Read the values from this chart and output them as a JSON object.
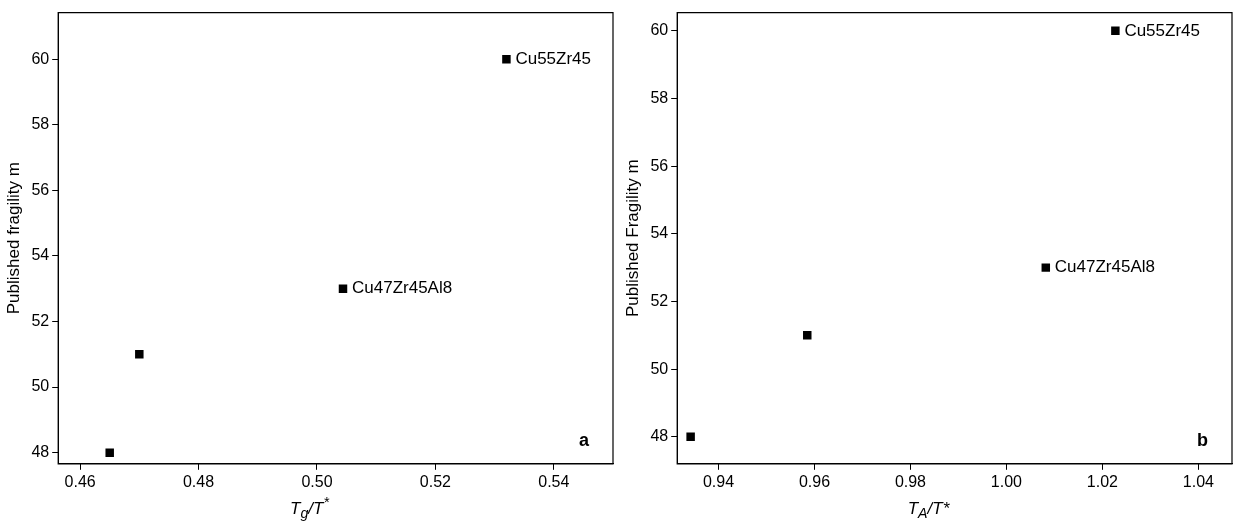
{
  "chart_data": [
    {
      "type": "scatter",
      "xlabel": "T$_{g}$/T$^{*}$",
      "ylabel": "Published fragility m",
      "marker": "square",
      "grid": false,
      "legend": false,
      "series": [
        {
          "color": "#000000",
          "x": [
            0.465,
            0.47,
            0.5044,
            0.532
          ],
          "values": [
            48,
            51,
            53,
            60
          ]
        }
      ],
      "xlim": [
        0.4563,
        0.55
      ],
      "xticks": [
        {
          "value": 0.46,
          "label": "0.46"
        },
        {
          "value": 0.48,
          "label": "0.48"
        },
        {
          "value": 0.5,
          "label": "0.50"
        },
        {
          "value": 0.52,
          "label": "0.52"
        },
        {
          "value": 0.54,
          "label": "0.54"
        }
      ],
      "ylim": [
        47.66,
        61.42
      ],
      "yticks": [
        48,
        50,
        52,
        54,
        56,
        58,
        60
      ],
      "annotations": [
        {
          "text": "Cu47Zr45Al8",
          "x": 0.5044,
          "y": 53
        },
        {
          "text": "Cu55Zr45",
          "x": 0.532,
          "y": 60
        },
        "a"
      ]
    },
    {
      "type": "scatter",
      "xlabel": "T$_{A}$/T*",
      "ylabel": "Published Fragility m",
      "marker": "square",
      "grid": false,
      "legend": false,
      "series": [
        {
          "color": "#000000",
          "x": [
            0.9342,
            0.9585,
            1.0082,
            1.0227
          ],
          "values": [
            48,
            51,
            53,
            60
          ]
        }
      ],
      "xlim": [
        0.9314,
        1.047
      ],
      "xticks": [
        {
          "value": 0.94,
          "label": "0.94"
        },
        {
          "value": 0.96,
          "label": "0.96"
        },
        {
          "value": 0.98,
          "label": "0.98"
        },
        {
          "value": 1.0,
          "label": "1.00"
        },
        {
          "value": 1.02,
          "label": "1.02"
        },
        {
          "value": 1.04,
          "label": "1.04"
        }
      ],
      "ylim": [
        47.2,
        60.54
      ],
      "yticks": [
        48,
        50,
        52,
        54,
        56,
        58,
        60
      ],
      "annotations": [
        {
          "text": "Cu47Zr45Al8",
          "x": 1.0082,
          "y": 53
        },
        {
          "text": "Cu55Zr45",
          "x": 1.0227,
          "y": 60
        },
        "b"
      ]
    }
  ]
}
